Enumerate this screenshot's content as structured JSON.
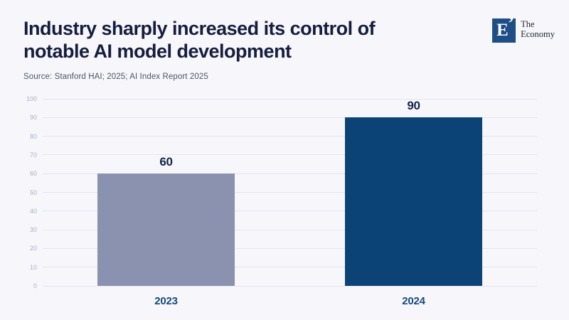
{
  "header": {
    "title_line1": "Industry sharply increased its control of",
    "title_line2": "notable AI model development",
    "source": "Source: Stanford HAI; 2025; AI Index Report 2025"
  },
  "logo": {
    "letter": "E",
    "mark": "’",
    "line1": "The",
    "line2": "Economy"
  },
  "chart_data": {
    "type": "bar",
    "title": "Industry sharply increased its control of notable AI model development",
    "categories": [
      "2023",
      "2024"
    ],
    "values": [
      60,
      90
    ],
    "value_labels": [
      "60",
      "90"
    ],
    "xlabel": "",
    "ylabel": "",
    "ylim": [
      0,
      100
    ],
    "ytick_step": 10,
    "ytick_labels": [
      "0",
      "10",
      "20",
      "30",
      "40",
      "50",
      "60",
      "70",
      "80",
      "90",
      "100"
    ],
    "grid": true,
    "legend": "none",
    "bar_colors": [
      "#8a92b0",
      "#0c4377"
    ],
    "colors": {
      "background": "#f7f7fb",
      "title": "#161d3d",
      "source_text": "#4f5468",
      "gridline": "#e3e4ef",
      "tick_label": "#a9aec4",
      "value_label": "#15234c",
      "category_label": "#17497e",
      "logo_square": "#1d4e86"
    }
  }
}
